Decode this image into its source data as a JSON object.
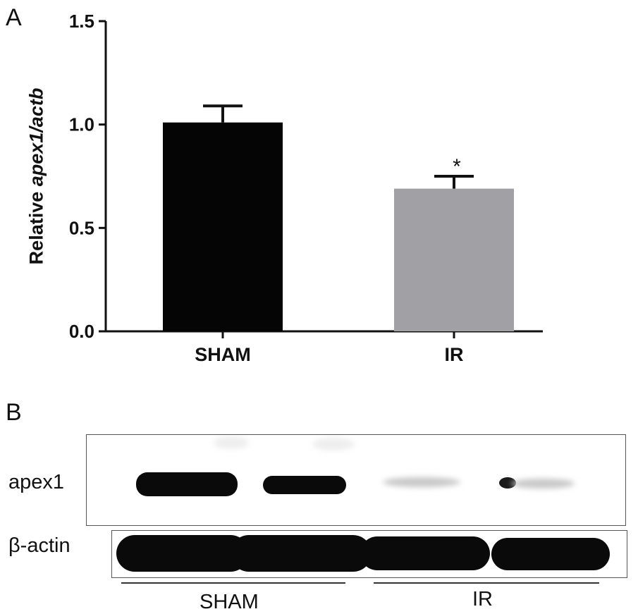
{
  "panel_a": {
    "letter": "A"
  },
  "panel_b": {
    "letter": "B",
    "row_labels": {
      "apex1": "apex1",
      "actin": "β-actin"
    },
    "group_labels": {
      "sham": "SHAM",
      "ir": "IR"
    }
  },
  "chart_data": {
    "type": "bar",
    "categories": [
      "SHAM",
      "IR"
    ],
    "values": [
      1.01,
      0.69
    ],
    "error": [
      0.08,
      0.06
    ],
    "colors": [
      "#050505",
      "#a1a1a5"
    ],
    "annotations": [
      "",
      "*"
    ],
    "ylabel_prefix": "Relative ",
    "ylabel_italic": "apex1/actb",
    "ylim": [
      0,
      1.5
    ],
    "yticks": [
      "0.0",
      "0.5",
      "1.0",
      "1.5"
    ],
    "ytick_values": [
      0,
      0.5,
      1.0,
      1.5
    ],
    "grid": false
  }
}
